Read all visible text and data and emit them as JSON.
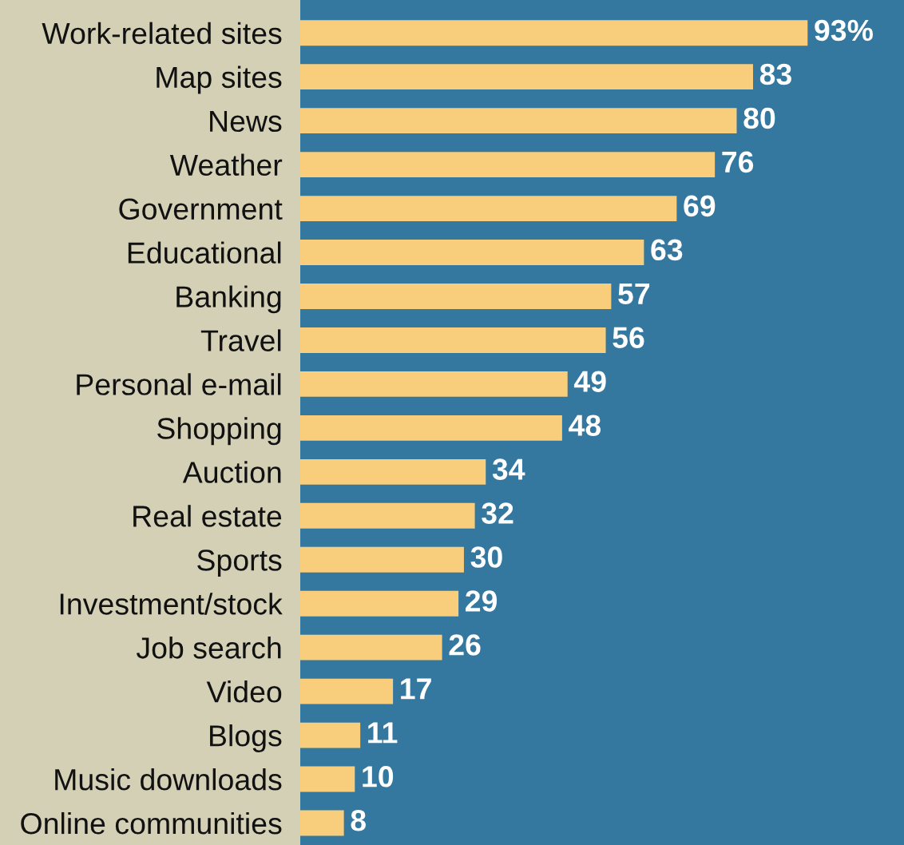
{
  "chart_data": {
    "type": "bar",
    "orientation": "horizontal",
    "categories": [
      "Work-related sites",
      "Map sites",
      "News",
      "Weather",
      "Government",
      "Educational",
      "Banking",
      "Travel",
      "Personal e-mail",
      "Shopping",
      "Auction",
      "Real estate",
      "Sports",
      "Investment/stock",
      "Job search",
      "Video",
      "Blogs",
      "Music downloads",
      "Online communities"
    ],
    "values": [
      93,
      83,
      80,
      76,
      69,
      63,
      57,
      56,
      49,
      48,
      34,
      32,
      30,
      29,
      26,
      17,
      11,
      10,
      8
    ],
    "value_labels": [
      "93%",
      "83",
      "80",
      "76",
      "69",
      "63",
      "57",
      "56",
      "49",
      "48",
      "34",
      "32",
      "30",
      "29",
      "26",
      "17",
      "11",
      "10",
      "8"
    ],
    "color": "#f8cd7c",
    "grid": false,
    "legend": false
  }
}
